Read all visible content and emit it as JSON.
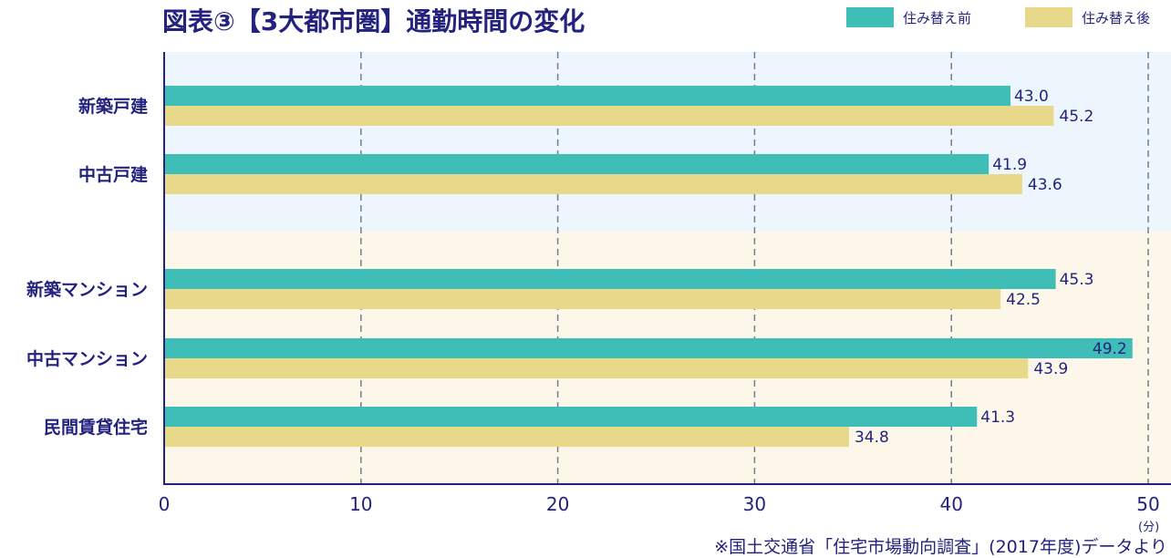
{
  "colors": {
    "before": "#3fbdb7",
    "after": "#e8d98a",
    "bg_house": "#eef6fd",
    "bg_condo": "#fdf7ea",
    "text": "#23237e",
    "grid": "#6f7f91"
  },
  "header": {
    "title": "図表③【3大都市圏】通勤時間の変化"
  },
  "legend": {
    "before": "住み替え前",
    "after": "住み替え後"
  },
  "footer": {
    "unit": "(分)",
    "source": "※国土交通省「住宅市場動向調査」(2017年度)データより"
  },
  "chart_data": {
    "type": "bar",
    "orientation": "horizontal",
    "title": "図表③【3大都市圏】通勤時間の変化",
    "xlabel": "(分)",
    "xlim": [
      0,
      50
    ],
    "xticks": [
      0,
      10,
      20,
      30,
      40,
      50
    ],
    "grid": true,
    "legend_position": "top-right",
    "categories": [
      "新築戸建",
      "中古戸建",
      "新築マンション",
      "中古マンション",
      "民間賃貸住宅"
    ],
    "series": [
      {
        "name": "住み替え前",
        "values": [
          43.0,
          41.9,
          45.3,
          49.2,
          41.3
        ]
      },
      {
        "name": "住み替え後",
        "values": [
          45.2,
          43.6,
          42.5,
          43.9,
          34.8
        ]
      }
    ],
    "value_labels": {
      "before": [
        "43.0",
        "41.9",
        "45.3",
        "49.2",
        "41.3"
      ],
      "after": [
        "45.2",
        "43.6",
        "42.5",
        "43.9",
        "34.8"
      ]
    }
  }
}
